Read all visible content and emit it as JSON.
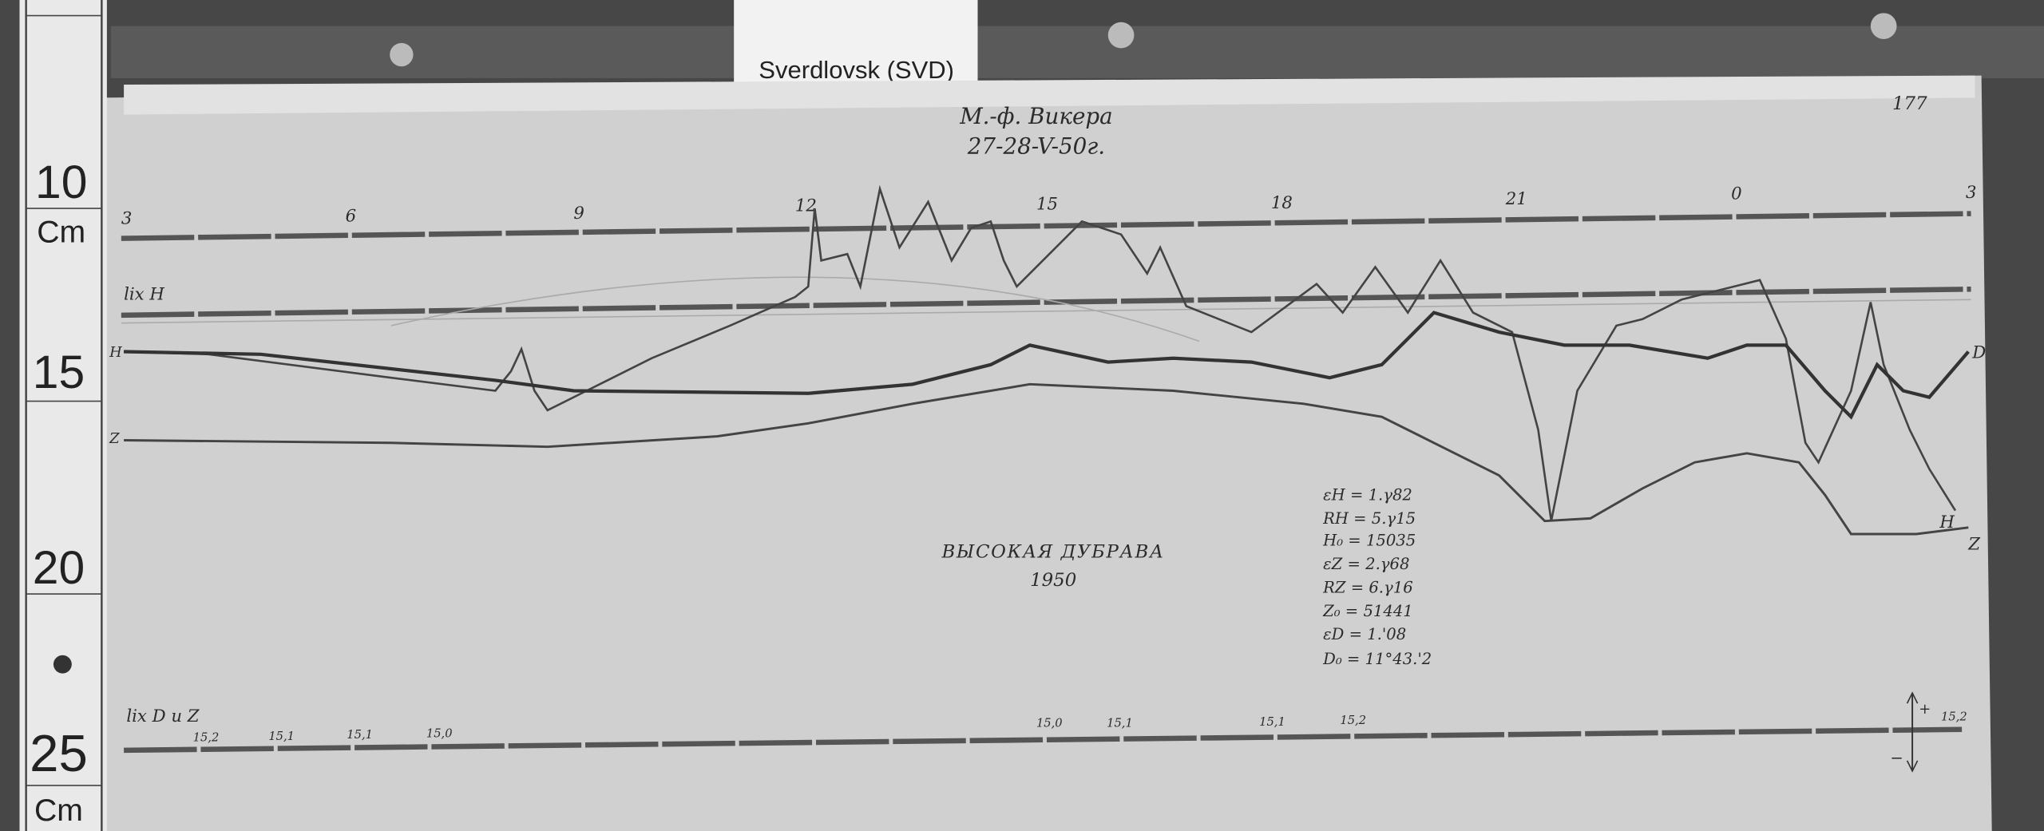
{
  "placard": {
    "station_label": "Sverdlovsk (SVD)"
  },
  "ruler": {
    "marks": [
      "10",
      "15",
      "20",
      "25"
    ],
    "unit": "Cm"
  },
  "sheet": {
    "header_observer": "М.-ф. Викера",
    "header_date": "27-28-V-50г.",
    "sheet_number": "177",
    "hour_labels": [
      "3",
      "6",
      "9",
      "12",
      "15",
      "18",
      "21",
      "0",
      "3"
    ],
    "baseline_h_label": "lix H",
    "baseline_dz_label": "lix D и Z",
    "station_title": "ВЫСОКАЯ ДУБРАВА",
    "year": "1950",
    "curve_labels": {
      "left_top": "H",
      "left_bottom": "Z",
      "right_d": "D",
      "right_h": "H",
      "right_z": "Z"
    },
    "constants": [
      "εH = 1.γ82",
      "RH = 5.γ15",
      "H₀ = 15035",
      "εZ = 2.γ68",
      "RZ = 6.γ16",
      "Z₀ = 51441",
      "εD = 1.'08",
      "D₀ = 11°43.'2"
    ],
    "temperature_marks": [
      "15,2",
      "15,1",
      "15,1",
      "15,0",
      "15,0",
      "15,1",
      "15,1",
      "15,2",
      "15,2"
    ],
    "arrow_plus": "+",
    "arrow_minus": "−"
  },
  "colors": {
    "wood": "#4a4a4a",
    "paper": "#d2d2d2",
    "ink": "#333333"
  }
}
